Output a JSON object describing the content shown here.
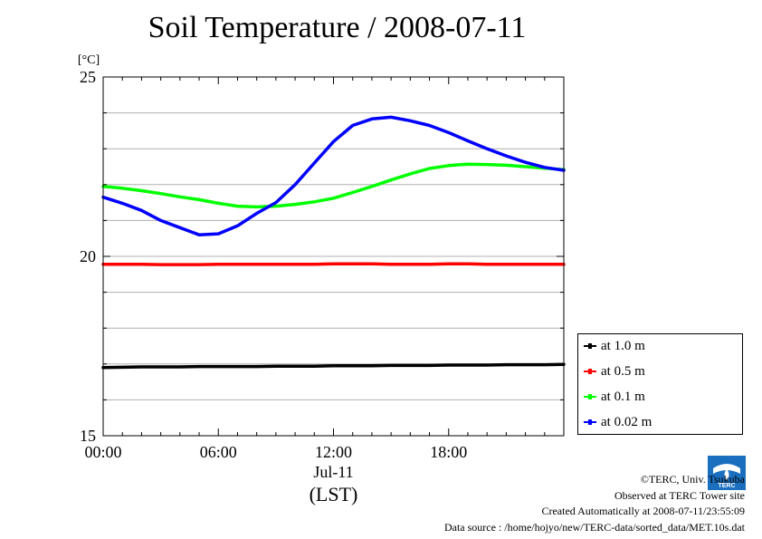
{
  "title": "Soil Temperature / 2008-07-11",
  "chart_data": {
    "type": "line",
    "title": "Soil Temperature / 2008-07-11",
    "ylabel": "[°C]",
    "xlabel": "(LST)",
    "x_date_label": "Jul-11",
    "ylim": [
      15,
      25
    ],
    "xlim": [
      0,
      24
    ],
    "y_ticks": [
      "15",
      "20",
      "25"
    ],
    "x_ticks": [
      "00:00",
      "06:00",
      "12:00",
      "18:00"
    ],
    "grid": true,
    "legend_position": "right-bottom",
    "x": [
      0,
      1,
      2,
      3,
      4,
      5,
      6,
      7,
      8,
      9,
      10,
      11,
      12,
      13,
      14,
      15,
      16,
      17,
      18,
      19,
      20,
      21,
      22,
      23,
      24
    ],
    "series": [
      {
        "name": "at 1.0 m",
        "color": "#000000",
        "values": [
          16.9,
          16.91,
          16.92,
          16.92,
          16.92,
          16.93,
          16.93,
          16.93,
          16.93,
          16.94,
          16.94,
          16.94,
          16.95,
          16.95,
          16.95,
          16.96,
          16.96,
          16.96,
          16.97,
          16.97,
          16.97,
          16.98,
          16.98,
          16.98,
          16.99
        ]
      },
      {
        "name": "at 0.5 m",
        "color": "#ff0000",
        "values": [
          19.78,
          19.78,
          19.78,
          19.77,
          19.77,
          19.77,
          19.78,
          19.78,
          19.78,
          19.78,
          19.78,
          19.78,
          19.79,
          19.79,
          19.79,
          19.78,
          19.78,
          19.78,
          19.79,
          19.79,
          19.78,
          19.78,
          19.78,
          19.78,
          19.78
        ]
      },
      {
        "name": "at 0.1 m",
        "color": "#00ff00",
        "values": [
          21.95,
          21.9,
          21.83,
          21.75,
          21.66,
          21.58,
          21.48,
          21.4,
          21.38,
          21.4,
          21.45,
          21.52,
          21.62,
          21.78,
          21.95,
          22.13,
          22.3,
          22.45,
          22.53,
          22.57,
          22.56,
          22.54,
          22.5,
          22.46,
          22.42
        ]
      },
      {
        "name": "at 0.02 m",
        "color": "#0000ff",
        "values": [
          21.65,
          21.48,
          21.28,
          21.0,
          20.8,
          20.6,
          20.63,
          20.85,
          21.2,
          21.5,
          22.0,
          22.6,
          23.2,
          23.65,
          23.83,
          23.88,
          23.78,
          23.65,
          23.45,
          23.22,
          23.0,
          22.8,
          22.62,
          22.48,
          22.4
        ]
      }
    ]
  },
  "legend": {
    "items": [
      {
        "label": "at 1.0 m",
        "color": "#000000"
      },
      {
        "label": "at 0.5 m",
        "color": "#ff0000"
      },
      {
        "label": "at 0.1 m",
        "color": "#00ff00"
      },
      {
        "label": "at 0.02 m",
        "color": "#0000ff"
      }
    ]
  },
  "credits": {
    "line1": "©TERC, Univ. Tsukuba",
    "line2": "Observed at TERC Tower site",
    "line3": "Created Automatically at 2008-07-11/23:55:09",
    "line4": "Data source : /home/hojyo/new/TERC-data/sorted_data/MET.10s.dat"
  },
  "logo": {
    "text": "TERC",
    "color": "#1a6fbf"
  }
}
